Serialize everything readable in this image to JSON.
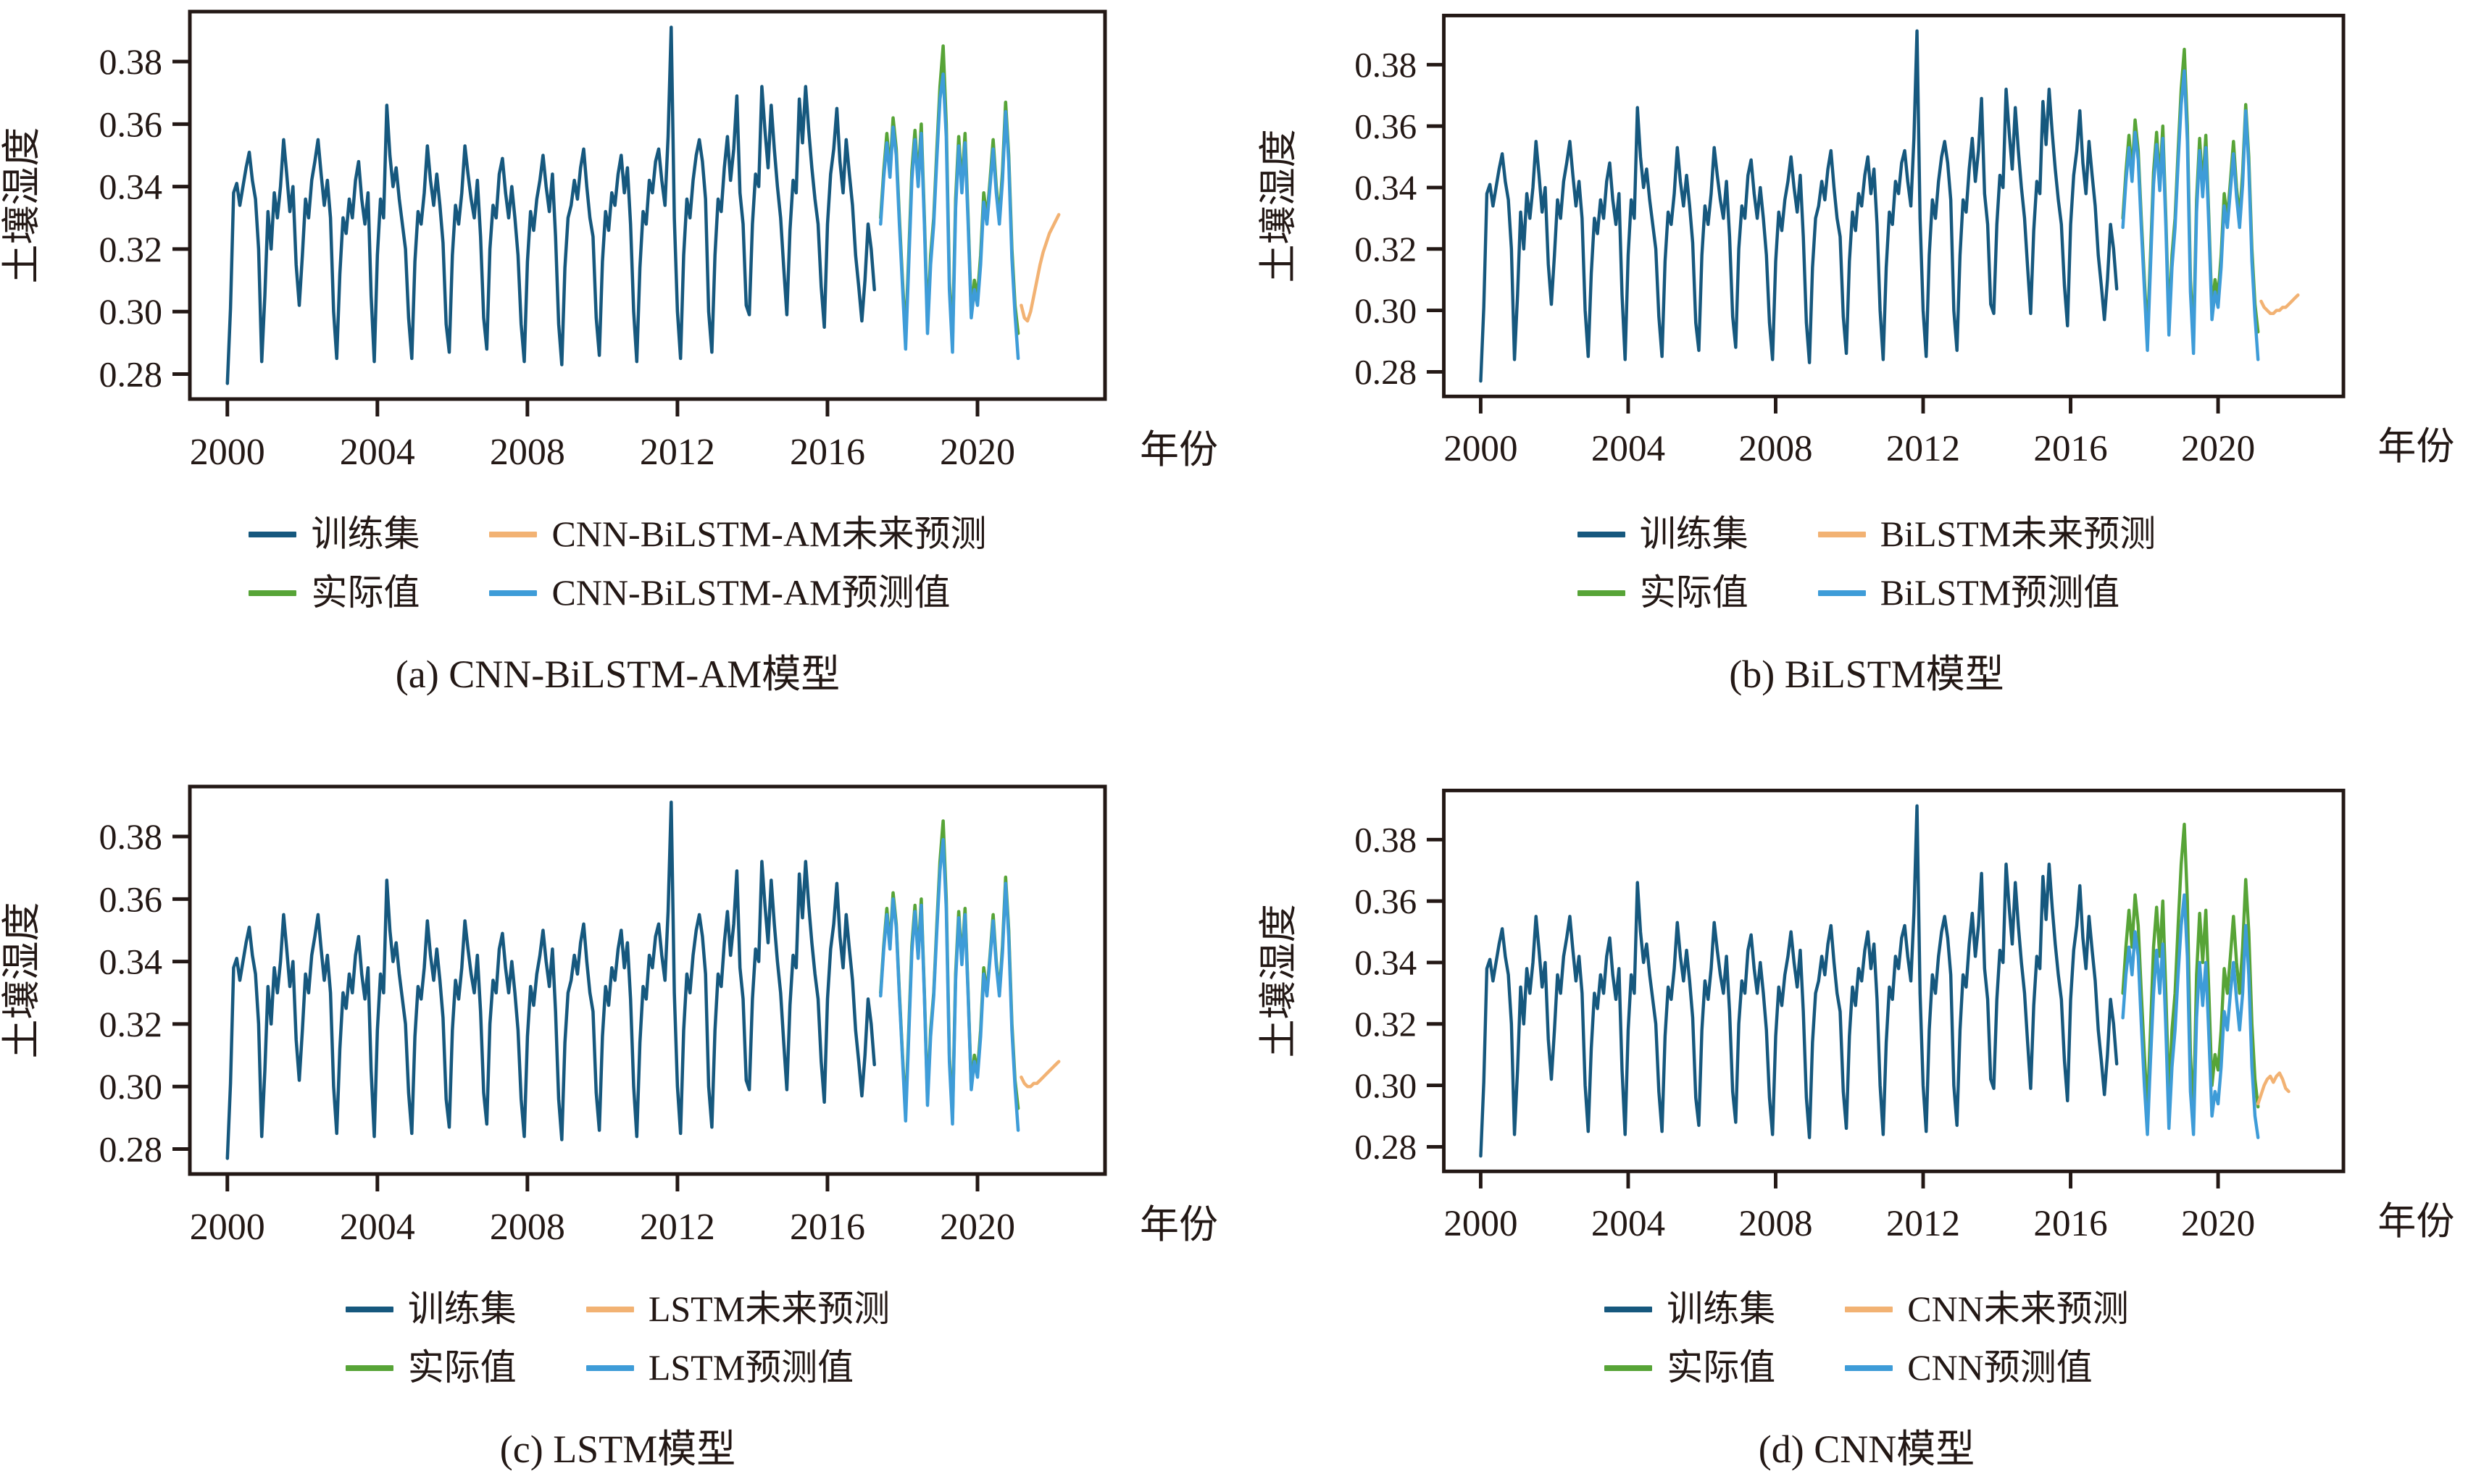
{
  "page": {
    "background": "#ffffff"
  },
  "chart_data": {
    "type": "line",
    "x_axis": {
      "label": "年份",
      "range": [
        1999.0,
        2023.4
      ],
      "ticks": [
        2000,
        2004,
        2008,
        2012,
        2016,
        2020
      ]
    },
    "y_axis": {
      "label": "土壤湿度",
      "range": [
        0.272,
        0.396
      ],
      "ticks": [
        0.28,
        0.3,
        0.32,
        0.34,
        0.36,
        0.38
      ]
    },
    "colors": {
      "training": "#16587e",
      "actual": "#57a437",
      "predicted": "#3e9cd8",
      "future": "#f2b273",
      "frame": "#231815",
      "text": "#231815"
    },
    "step_years": 0.0833333,
    "series_shared": {
      "training": {
        "label": "训练集",
        "x_start": 2000.0,
        "values": [
          0.277,
          0.301,
          0.338,
          0.341,
          0.334,
          0.34,
          0.346,
          0.351,
          0.342,
          0.336,
          0.32,
          0.284,
          0.305,
          0.332,
          0.32,
          0.338,
          0.33,
          0.34,
          0.355,
          0.344,
          0.332,
          0.34,
          0.315,
          0.302,
          0.318,
          0.336,
          0.33,
          0.342,
          0.348,
          0.355,
          0.344,
          0.334,
          0.342,
          0.33,
          0.3,
          0.285,
          0.312,
          0.33,
          0.325,
          0.336,
          0.33,
          0.342,
          0.348,
          0.336,
          0.328,
          0.338,
          0.305,
          0.284,
          0.318,
          0.336,
          0.33,
          0.366,
          0.35,
          0.34,
          0.346,
          0.336,
          0.328,
          0.32,
          0.298,
          0.285,
          0.316,
          0.332,
          0.328,
          0.338,
          0.353,
          0.342,
          0.334,
          0.344,
          0.334,
          0.322,
          0.296,
          0.287,
          0.318,
          0.334,
          0.328,
          0.338,
          0.353,
          0.344,
          0.336,
          0.33,
          0.342,
          0.324,
          0.298,
          0.288,
          0.32,
          0.334,
          0.33,
          0.344,
          0.349,
          0.338,
          0.33,
          0.34,
          0.33,
          0.318,
          0.296,
          0.284,
          0.316,
          0.332,
          0.326,
          0.336,
          0.342,
          0.35,
          0.34,
          0.332,
          0.344,
          0.324,
          0.296,
          0.283,
          0.314,
          0.33,
          0.334,
          0.342,
          0.336,
          0.346,
          0.352,
          0.34,
          0.33,
          0.324,
          0.298,
          0.286,
          0.316,
          0.332,
          0.326,
          0.338,
          0.334,
          0.344,
          0.35,
          0.338,
          0.346,
          0.328,
          0.3,
          0.284,
          0.314,
          0.332,
          0.328,
          0.342,
          0.338,
          0.348,
          0.352,
          0.342,
          0.334,
          0.356,
          0.391,
          0.33,
          0.3,
          0.285,
          0.318,
          0.336,
          0.33,
          0.342,
          0.35,
          0.355,
          0.348,
          0.336,
          0.3,
          0.287,
          0.318,
          0.336,
          0.332,
          0.346,
          0.356,
          0.342,
          0.352,
          0.369,
          0.338,
          0.328,
          0.302,
          0.299,
          0.328,
          0.344,
          0.34,
          0.372,
          0.358,
          0.346,
          0.366,
          0.352,
          0.34,
          0.33,
          0.314,
          0.299,
          0.326,
          0.342,
          0.338,
          0.368,
          0.354,
          0.372,
          0.358,
          0.346,
          0.336,
          0.328,
          0.308,
          0.295,
          0.328,
          0.344,
          0.352,
          0.365,
          0.348,
          0.338,
          0.355,
          0.344,
          0.334,
          0.318,
          0.308,
          0.297,
          0.31,
          0.328,
          0.32,
          0.307
        ]
      },
      "actual": {
        "label": "实际值",
        "x_start": 2017.4167,
        "values": [
          0.33,
          0.345,
          0.357,
          0.345,
          0.362,
          0.352,
          0.33,
          0.31,
          0.292,
          0.318,
          0.345,
          0.358,
          0.342,
          0.36,
          0.33,
          0.296,
          0.318,
          0.33,
          0.352,
          0.372,
          0.385,
          0.36,
          0.31,
          0.29,
          0.336,
          0.356,
          0.34,
          0.357,
          0.33,
          0.3,
          0.31,
          0.305,
          0.318,
          0.338,
          0.33,
          0.342,
          0.355,
          0.34,
          0.33,
          0.345,
          0.367,
          0.35,
          0.32,
          0.302,
          0.293
        ]
      }
    },
    "panels": [
      {
        "id": "a",
        "caption": "(a) CNN-BiLSTM-AM模型",
        "legend": {
          "train": "训练集",
          "actual": "实际值",
          "future": "CNN-BiLSTM-AM未来预测",
          "predicted": "CNN-BiLSTM-AM预测值"
        },
        "predicted": {
          "x_start": 2017.4167,
          "values": [
            0.328,
            0.343,
            0.354,
            0.343,
            0.359,
            0.35,
            0.328,
            0.308,
            0.288,
            0.315,
            0.342,
            0.355,
            0.34,
            0.357,
            0.328,
            0.293,
            0.315,
            0.328,
            0.349,
            0.368,
            0.376,
            0.356,
            0.307,
            0.287,
            0.333,
            0.353,
            0.338,
            0.354,
            0.328,
            0.298,
            0.307,
            0.302,
            0.315,
            0.335,
            0.328,
            0.34,
            0.352,
            0.338,
            0.328,
            0.342,
            0.364,
            0.348,
            0.317,
            0.299,
            0.285
          ]
        },
        "future": {
          "x_start": 2021.1667,
          "values": [
            0.302,
            0.298,
            0.297,
            0.3,
            0.305,
            0.31,
            0.315,
            0.319,
            0.322,
            0.325,
            0.327,
            0.329,
            0.331
          ]
        }
      },
      {
        "id": "b",
        "caption": "(b) BiLSTM模型",
        "legend": {
          "train": "训练集",
          "actual": "实际值",
          "future": "BiLSTM未来预测",
          "predicted": "BiLSTM预测值"
        },
        "predicted": {
          "x_start": 2017.4167,
          "values": [
            0.327,
            0.342,
            0.353,
            0.342,
            0.358,
            0.349,
            0.327,
            0.307,
            0.287,
            0.314,
            0.341,
            0.354,
            0.339,
            0.356,
            0.327,
            0.292,
            0.314,
            0.327,
            0.348,
            0.367,
            0.378,
            0.355,
            0.306,
            0.286,
            0.332,
            0.352,
            0.337,
            0.353,
            0.327,
            0.297,
            0.306,
            0.301,
            0.314,
            0.334,
            0.327,
            0.339,
            0.351,
            0.337,
            0.327,
            0.341,
            0.365,
            0.347,
            0.316,
            0.298,
            0.284
          ]
        },
        "future": {
          "x_start": 2021.1667,
          "values": [
            0.303,
            0.301,
            0.3,
            0.299,
            0.299,
            0.3,
            0.3,
            0.301,
            0.301,
            0.302,
            0.303,
            0.304,
            0.305
          ]
        }
      },
      {
        "id": "c",
        "caption": "(c) LSTM模型",
        "legend": {
          "train": "训练集",
          "actual": "实际值",
          "future": "LSTM未来预测",
          "predicted": "LSTM预测值"
        },
        "predicted": {
          "x_start": 2017.4167,
          "values": [
            0.329,
            0.344,
            0.355,
            0.344,
            0.36,
            0.351,
            0.329,
            0.309,
            0.289,
            0.316,
            0.343,
            0.356,
            0.341,
            0.358,
            0.329,
            0.294,
            0.316,
            0.329,
            0.35,
            0.369,
            0.379,
            0.357,
            0.308,
            0.288,
            0.334,
            0.354,
            0.339,
            0.355,
            0.329,
            0.299,
            0.308,
            0.303,
            0.316,
            0.336,
            0.329,
            0.341,
            0.353,
            0.339,
            0.329,
            0.343,
            0.365,
            0.348,
            0.318,
            0.3,
            0.286
          ]
        },
        "future": {
          "x_start": 2021.1667,
          "values": [
            0.303,
            0.301,
            0.3,
            0.3,
            0.301,
            0.301,
            0.302,
            0.303,
            0.304,
            0.305,
            0.306,
            0.307,
            0.308
          ]
        }
      },
      {
        "id": "d",
        "caption": "(d) CNN模型",
        "legend": {
          "train": "训练集",
          "actual": "实际值",
          "future": "CNN未来预测",
          "predicted": "CNN预测值"
        },
        "predicted": {
          "x_start": 2017.4167,
          "values": [
            0.322,
            0.336,
            0.345,
            0.336,
            0.35,
            0.342,
            0.32,
            0.3,
            0.284,
            0.308,
            0.33,
            0.344,
            0.33,
            0.346,
            0.318,
            0.286,
            0.306,
            0.318,
            0.336,
            0.352,
            0.362,
            0.342,
            0.298,
            0.284,
            0.322,
            0.34,
            0.326,
            0.34,
            0.316,
            0.29,
            0.298,
            0.294,
            0.306,
            0.324,
            0.318,
            0.33,
            0.34,
            0.328,
            0.318,
            0.33,
            0.352,
            0.336,
            0.306,
            0.29,
            0.283
          ]
        },
        "future": {
          "x_start": 2021.0833,
          "values": [
            0.294,
            0.297,
            0.3,
            0.302,
            0.303,
            0.301,
            0.303,
            0.304,
            0.302,
            0.299,
            0.298
          ]
        }
      }
    ]
  }
}
